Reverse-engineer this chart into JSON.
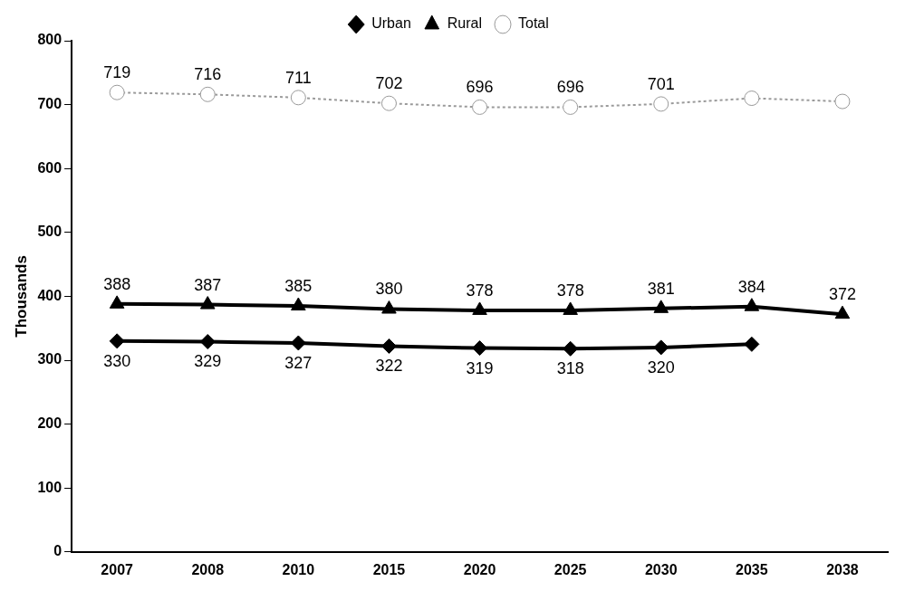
{
  "chart_data": {
    "type": "line",
    "ylabel": "Thousands",
    "categories": [
      "2007",
      "2008",
      "2010",
      "2015",
      "2020",
      "2025",
      "2030",
      "2035",
      "2038"
    ],
    "series": [
      {
        "name": "Urban",
        "color": "#000000",
        "marker": "diamond",
        "line_style": "solid",
        "values": [
          330,
          329,
          327,
          322,
          319,
          318,
          320,
          325,
          null
        ],
        "value_labels": [
          "330",
          "329",
          "327",
          "322",
          "319",
          "318",
          "320",
          null,
          null
        ]
      },
      {
        "name": "Rural",
        "color": "#000000",
        "marker": "triangle",
        "line_style": "solid",
        "values": [
          388,
          387,
          385,
          380,
          378,
          378,
          381,
          384,
          372
        ],
        "value_labels": [
          "388",
          "387",
          "385",
          "380",
          "378",
          "378",
          "381",
          "384",
          "372"
        ]
      },
      {
        "name": "Total",
        "color": "#9a9a9a",
        "marker": "circle",
        "line_style": "dotted",
        "values": [
          719,
          716,
          711,
          702,
          696,
          696,
          701,
          710,
          705
        ],
        "value_labels": [
          "719",
          "716",
          "711",
          "702",
          "696",
          "696",
          "701",
          null,
          null
        ]
      }
    ],
    "ylim": [
      0,
      800
    ],
    "yticks": [
      0,
      100,
      200,
      300,
      400,
      500,
      600,
      700,
      800
    ],
    "grid": false,
    "legend": "top"
  }
}
